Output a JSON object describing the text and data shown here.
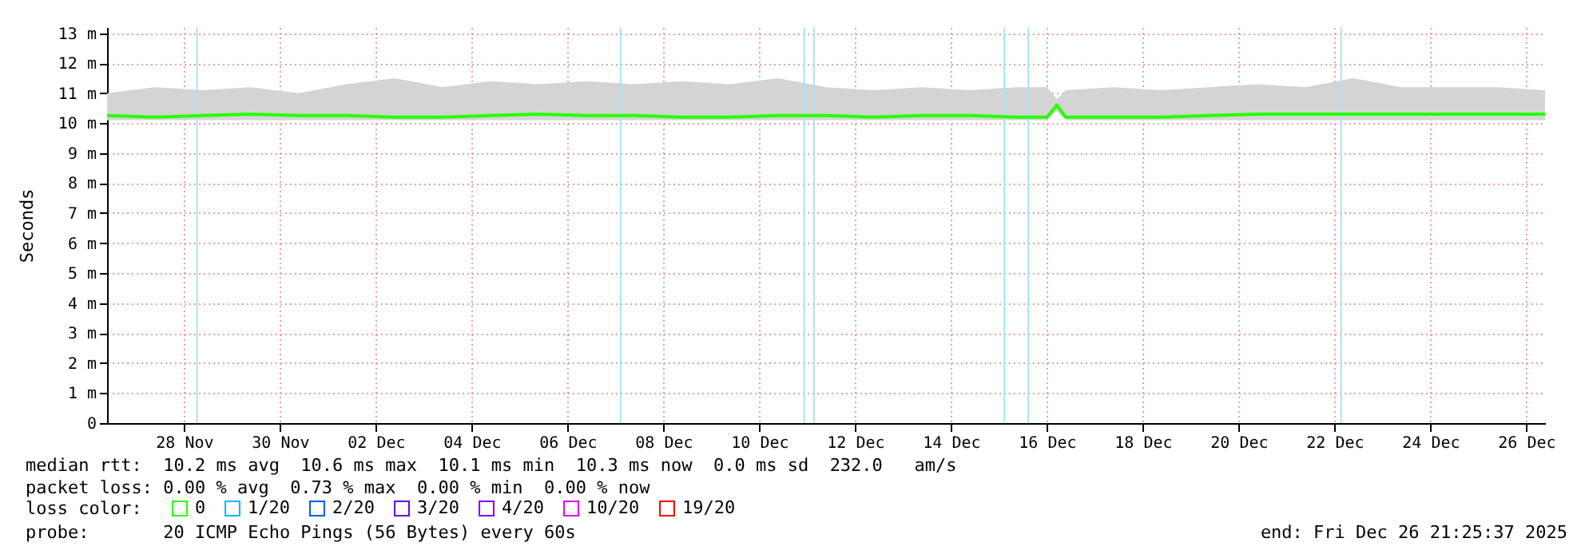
{
  "chart_data": {
    "type": "line",
    "ylabel": "Seconds",
    "legend_title": "loss color:",
    "legend": "bottom",
    "grid": true,
    "xlim": [
      "2025-11-26T21:25",
      "2025-12-26T21:25"
    ],
    "xticks": [
      {
        "value": "2025-11-28T12:00",
        "label": "28 Nov"
      },
      {
        "value": "2025-11-30T12:00",
        "label": "30 Nov"
      },
      {
        "value": "2025-12-02T12:00",
        "label": "02 Dec"
      },
      {
        "value": "2025-12-04T12:00",
        "label": "04 Dec"
      },
      {
        "value": "2025-12-06T12:00",
        "label": "06 Dec"
      },
      {
        "value": "2025-12-08T12:00",
        "label": "08 Dec"
      },
      {
        "value": "2025-12-10T12:00",
        "label": "10 Dec"
      },
      {
        "value": "2025-12-12T12:00",
        "label": "12 Dec"
      },
      {
        "value": "2025-12-14T12:00",
        "label": "14 Dec"
      },
      {
        "value": "2025-12-16T12:00",
        "label": "16 Dec"
      },
      {
        "value": "2025-12-18T12:00",
        "label": "18 Dec"
      },
      {
        "value": "2025-12-20T12:00",
        "label": "20 Dec"
      },
      {
        "value": "2025-12-22T12:00",
        "label": "22 Dec"
      },
      {
        "value": "2025-12-24T12:00",
        "label": "24 Dec"
      },
      {
        "value": "2025-12-26T12:00",
        "label": "26 Dec"
      }
    ],
    "ylim": [
      0,
      13.2
    ],
    "yticks": [
      0,
      {
        "value": 1,
        "label": "1 m"
      },
      {
        "value": 2,
        "label": "2 m"
      },
      {
        "value": 3,
        "label": "3 m"
      },
      {
        "value": 4,
        "label": "4 m"
      },
      {
        "value": 5,
        "label": "5 m"
      },
      {
        "value": 6,
        "label": "6 m"
      },
      {
        "value": 7,
        "label": "7 m"
      },
      {
        "value": 8,
        "label": "8 m"
      },
      {
        "value": 9,
        "label": "9 m"
      },
      {
        "value": 10,
        "label": "10 m"
      },
      {
        "value": 11,
        "label": "11 m"
      },
      {
        "value": 12,
        "label": "12 m"
      },
      {
        "value": 13,
        "label": "13 m"
      }
    ],
    "x": [
      "2025-11-26T21:25",
      "2025-11-27T21:25",
      "2025-11-28T21:25",
      "2025-11-29T21:25",
      "2025-11-30T21:25",
      "2025-12-01T21:25",
      "2025-12-02T21:25",
      "2025-12-03T21:25",
      "2025-12-04T21:25",
      "2025-12-05T21:25",
      "2025-12-06T21:25",
      "2025-12-07T21:25",
      "2025-12-08T21:25",
      "2025-12-09T21:25",
      "2025-12-10T21:25",
      "2025-12-11T21:25",
      "2025-12-12T21:25",
      "2025-12-13T21:25",
      "2025-12-14T21:25",
      "2025-12-15T21:25",
      "2025-12-16T12:00",
      "2025-12-16T17:00",
      "2025-12-16T21:25",
      "2025-12-17T21:25",
      "2025-12-18T21:25",
      "2025-12-19T21:25",
      "2025-12-20T21:25",
      "2025-12-21T21:25",
      "2025-12-22T21:25",
      "2025-12-23T21:25",
      "2025-12-24T21:25",
      "2025-12-25T21:25",
      "2025-12-26T21:25"
    ],
    "series": [
      {
        "name": "0",
        "color": "#26ff00",
        "values": [
          10.25,
          10.2,
          10.25,
          10.3,
          10.25,
          10.25,
          10.2,
          10.2,
          10.25,
          10.3,
          10.25,
          10.25,
          10.2,
          10.2,
          10.25,
          10.25,
          10.2,
          10.25,
          10.25,
          10.2,
          10.2,
          10.6,
          10.2,
          10.2,
          10.2,
          10.25,
          10.3,
          10.3,
          10.3,
          10.3,
          10.3,
          10.3,
          10.3
        ],
        "lower": [
          10.1,
          10.1,
          10.1,
          10.1,
          10.1,
          10.1,
          10.1,
          10.1,
          10.1,
          10.1,
          10.1,
          10.1,
          10.1,
          10.1,
          10.1,
          10.1,
          10.1,
          10.1,
          10.1,
          10.1,
          10.1,
          10.4,
          10.1,
          10.1,
          10.1,
          10.1,
          10.1,
          10.1,
          10.1,
          10.1,
          10.1,
          10.1,
          10.1
        ],
        "upper": [
          11.0,
          11.2,
          11.1,
          11.2,
          11.0,
          11.3,
          11.5,
          11.2,
          11.4,
          11.3,
          11.4,
          11.3,
          11.4,
          11.3,
          11.5,
          11.2,
          11.1,
          11.2,
          11.1,
          11.2,
          11.2,
          10.8,
          11.1,
          11.2,
          11.1,
          11.2,
          11.3,
          11.2,
          11.5,
          11.2,
          11.2,
          11.2,
          11.1
        ]
      },
      {
        "name": "1/20",
        "color": "#00b8ff",
        "values": [
          null,
          null,
          null,
          null,
          null,
          null,
          null,
          null,
          null,
          null,
          null,
          null,
          null,
          null,
          null,
          null,
          null,
          null,
          null,
          null,
          null,
          null,
          null,
          null,
          null,
          null,
          null,
          null,
          null,
          null,
          null,
          null,
          null
        ]
      },
      {
        "name": "2/20",
        "color": "#0059ff",
        "values": [
          null,
          null,
          null,
          null,
          null,
          null,
          null,
          null,
          null,
          null,
          null,
          null,
          null,
          null,
          null,
          null,
          null,
          null,
          null,
          null,
          null,
          null,
          null,
          null,
          null,
          null,
          null,
          null,
          null,
          null,
          null,
          null,
          null
        ]
      },
      {
        "name": "3/20",
        "color": "#5e00ff",
        "values": [
          null,
          null,
          null,
          null,
          null,
          null,
          null,
          null,
          null,
          null,
          null,
          null,
          null,
          null,
          null,
          null,
          null,
          null,
          null,
          null,
          null,
          null,
          null,
          null,
          null,
          null,
          null,
          null,
          null,
          null,
          null,
          null,
          null
        ]
      },
      {
        "name": "4/20",
        "color": "#7e00ff",
        "values": [
          null,
          null,
          null,
          null,
          null,
          null,
          null,
          null,
          null,
          null,
          null,
          null,
          null,
          null,
          null,
          null,
          null,
          null,
          null,
          null,
          null,
          null,
          null,
          null,
          null,
          null,
          null,
          null,
          null,
          null,
          null,
          null,
          null
        ]
      },
      {
        "name": "10/20",
        "color": "#dd00ff",
        "values": [
          null,
          null,
          null,
          null,
          null,
          null,
          null,
          null,
          null,
          null,
          null,
          null,
          null,
          null,
          null,
          null,
          null,
          null,
          null,
          null,
          null,
          null,
          null,
          null,
          null,
          null,
          null,
          null,
          null,
          null,
          null,
          null,
          null
        ]
      },
      {
        "name": "19/20",
        "color": "#ff0000",
        "values": [
          null,
          null,
          null,
          null,
          null,
          null,
          null,
          null,
          null,
          null,
          null,
          null,
          null,
          null,
          null,
          null,
          null,
          null,
          null,
          null,
          null,
          null,
          null,
          null,
          null,
          null,
          null,
          null,
          null,
          null,
          null,
          null,
          null
        ]
      }
    ],
    "ref_lines": [
      {
        "axis": "x",
        "value": "2025-11-28T18:30",
        "color": "#a8e4fa"
      },
      {
        "axis": "x",
        "value": "2025-12-07T14:30",
        "color": "#a8e4fa"
      },
      {
        "axis": "x",
        "value": "2025-12-11T10:30",
        "color": "#a8e4fa"
      },
      {
        "axis": "x",
        "value": "2025-12-11T15:20",
        "color": "#a8e4fa"
      },
      {
        "axis": "x",
        "value": "2025-12-15T14:40",
        "color": "#a8e4fa"
      },
      {
        "axis": "x",
        "value": "2025-12-16T02:40",
        "color": "#a8e4fa"
      },
      {
        "axis": "x",
        "value": "2025-12-22T15:20",
        "color": "#a8e4fa"
      }
    ],
    "annotations": [
      "median rtt:  10.2 ms avg  10.6 ms max  10.1 ms min  10.3 ms now  0.0 ms sd  232.0   am/s",
      "packet loss: 0.00 % avg  0.73 % max  0.00 % min  0.00 % now",
      "probe:       20 ICMP Echo Pings (56 Bytes) every 60s",
      "end: Fri Dec 26 21:25:37 2025"
    ]
  }
}
